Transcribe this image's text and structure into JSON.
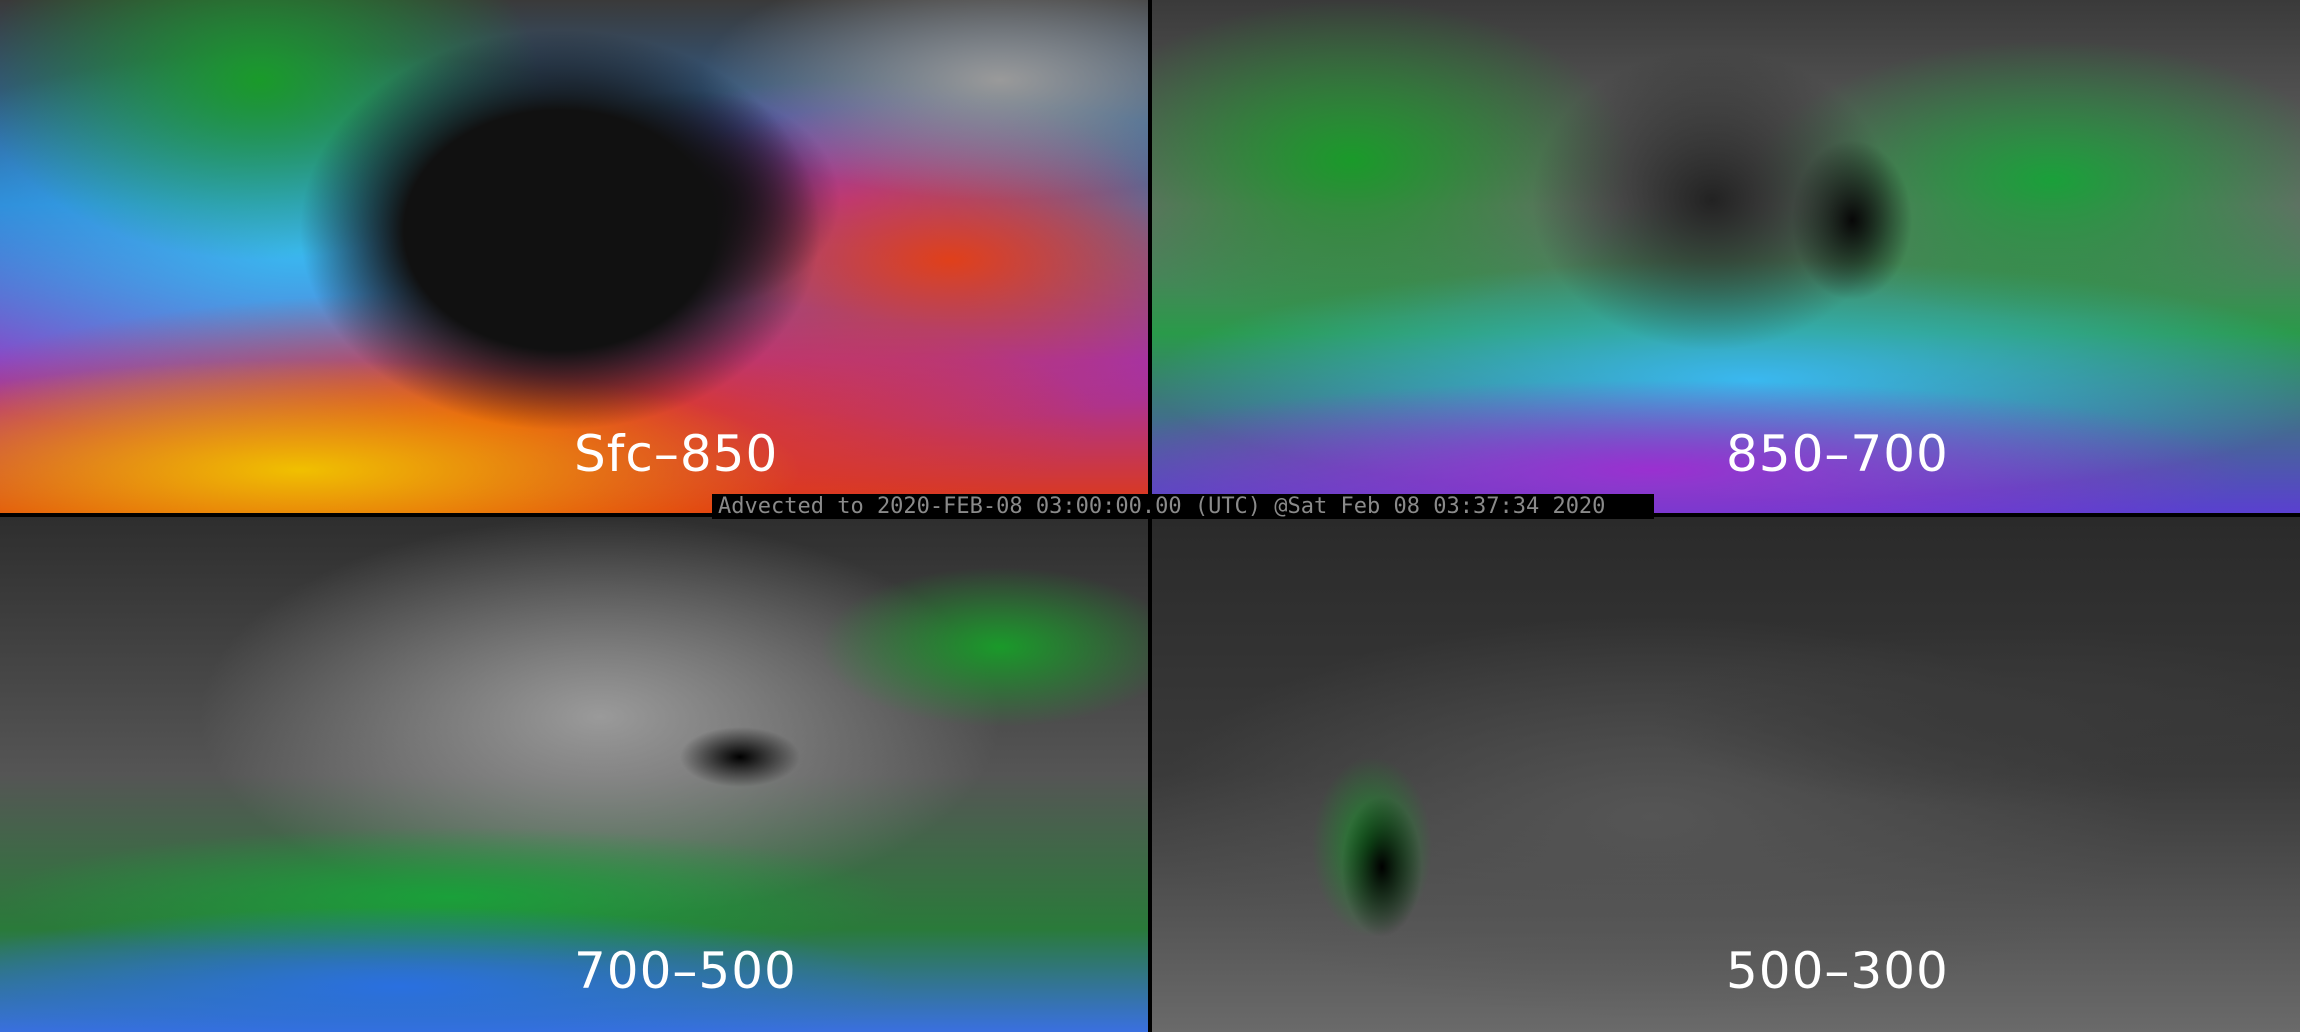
{
  "panels": [
    {
      "label": "Sfc–850"
    },
    {
      "label": "850–700"
    },
    {
      "label": "700–500"
    },
    {
      "label": "500–300"
    }
  ],
  "timestamp": "Advected to 2020-FEB-08 03:00:00.00 (UTC) @Sat Feb 08 03:37:34 2020",
  "colors": {
    "background": "#000000",
    "label_text": "#ffffff",
    "timestamp_text": "#8a8a8a"
  }
}
